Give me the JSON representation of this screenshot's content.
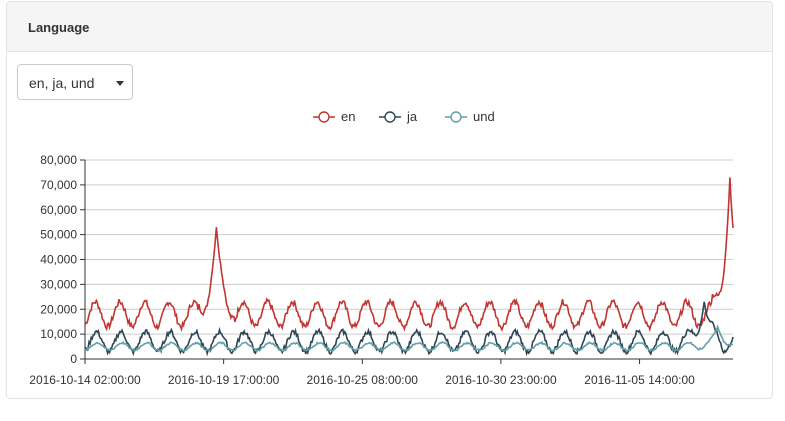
{
  "panel": {
    "title": "Language"
  },
  "selector": {
    "value": "en, ja, und"
  },
  "colors": {
    "en": "#c23531",
    "ja": "#2f4554",
    "und": "#61a0a8"
  },
  "chart_data": {
    "type": "line",
    "title": "",
    "xlabel": "",
    "ylabel": "",
    "ylim": [
      0,
      80000
    ],
    "y_ticks": [
      "0",
      "10,000",
      "20,000",
      "30,000",
      "40,000",
      "50,000",
      "60,000",
      "70,000",
      "80,000"
    ],
    "x_tick_labels": [
      "2016-10-14 02:00:00",
      "2016-10-19 17:00:00",
      "2016-10-25 08:00:00",
      "2016-10-30 23:00:00",
      "2016-11-05 14:00:00"
    ],
    "x_start": "2016-10-14 02:00:00",
    "x_end": "2016-11-09 09:00:00",
    "x_step": "hourly",
    "grid": true,
    "legend": "top-center",
    "series": [
      {
        "name": "en",
        "daily_low": 13000,
        "daily_high": 23000,
        "events": [
          {
            "time": "2016-10-19 10:00:00",
            "peak": 53000
          },
          {
            "time": "2016-11-09 06:00:00",
            "peak": 73000
          }
        ]
      },
      {
        "name": "ja",
        "daily_low": 3000,
        "daily_high": 11000,
        "events": [
          {
            "time": "2016-11-08 05:00:00",
            "peak": 23000
          }
        ]
      },
      {
        "name": "und",
        "daily_low": 3500,
        "daily_high": 6500,
        "events": [
          {
            "time": "2016-11-08 18:00:00",
            "peak": 13000
          }
        ]
      }
    ]
  }
}
